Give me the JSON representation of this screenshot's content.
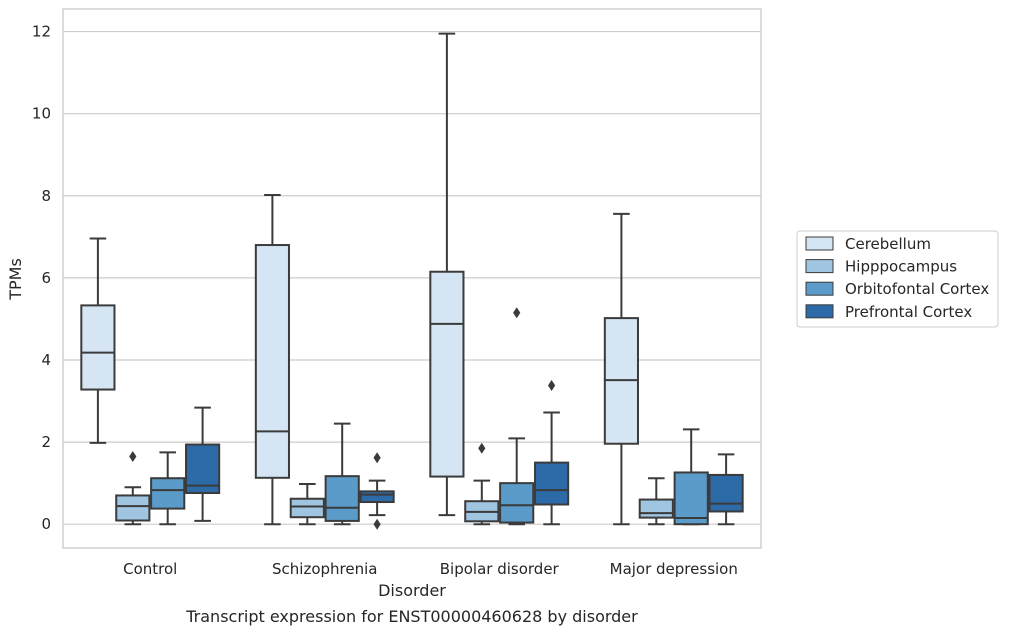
{
  "chart_data": {
    "type": "box",
    "xlabel": "Disorder",
    "ylabel": "TPMs",
    "caption": "Transcript expression for ENST00000460628 by disorder",
    "ylim": [
      -0.58,
      12.55
    ],
    "yticks": [
      0,
      2,
      4,
      6,
      8,
      10,
      12
    ],
    "grid": true,
    "legend_position": "right",
    "categories": [
      "Control",
      "Schizophrenia",
      "Bipolar disorder",
      "Major depression"
    ],
    "series": [
      {
        "name": "Cerebellum",
        "color": "#d6e5f3",
        "boxes": [
          {
            "whisker_low": 1.98,
            "q1": 3.28,
            "median": 4.18,
            "q3": 5.33,
            "whisker_high": 6.96,
            "outliers": []
          },
          {
            "whisker_low": 0.0,
            "q1": 1.13,
            "median": 2.26,
            "q3": 6.8,
            "whisker_high": 8.02,
            "outliers": []
          },
          {
            "whisker_low": 0.22,
            "q1": 1.16,
            "median": 4.88,
            "q3": 6.15,
            "whisker_high": 11.95,
            "outliers": []
          },
          {
            "whisker_low": 0.0,
            "q1": 1.96,
            "median": 3.51,
            "q3": 5.02,
            "whisker_high": 7.56,
            "outliers": []
          }
        ]
      },
      {
        "name": "Hipppocampus",
        "color": "#a0c5e0",
        "boxes": [
          {
            "whisker_low": 0.0,
            "q1": 0.09,
            "median": 0.44,
            "q3": 0.7,
            "whisker_high": 0.9,
            "outliers": [
              1.65
            ]
          },
          {
            "whisker_low": 0.0,
            "q1": 0.17,
            "median": 0.43,
            "q3": 0.62,
            "whisker_high": 0.98,
            "outliers": []
          },
          {
            "whisker_low": 0.0,
            "q1": 0.07,
            "median": 0.3,
            "q3": 0.56,
            "whisker_high": 1.06,
            "outliers": [
              1.85
            ]
          },
          {
            "whisker_low": 0.0,
            "q1": 0.16,
            "median": 0.27,
            "q3": 0.6,
            "whisker_high": 1.12,
            "outliers": []
          }
        ]
      },
      {
        "name": "Orbitofontal Cortex",
        "color": "#5b9bc9",
        "boxes": [
          {
            "whisker_low": 0.0,
            "q1": 0.38,
            "median": 0.83,
            "q3": 1.12,
            "whisker_high": 1.75,
            "outliers": []
          },
          {
            "whisker_low": 0.0,
            "q1": 0.08,
            "median": 0.4,
            "q3": 1.17,
            "whisker_high": 2.45,
            "outliers": []
          },
          {
            "whisker_low": 0.0,
            "q1": 0.04,
            "median": 0.46,
            "q3": 1.0,
            "whisker_high": 2.09,
            "outliers": [
              5.15
            ]
          },
          {
            "whisker_low": 0.0,
            "q1": 0.0,
            "median": 0.15,
            "q3": 1.26,
            "whisker_high": 2.31,
            "outliers": []
          }
        ]
      },
      {
        "name": "Prefrontal Cortex",
        "color": "#2d6aa8",
        "boxes": [
          {
            "whisker_low": 0.08,
            "q1": 0.76,
            "median": 0.94,
            "q3": 1.94,
            "whisker_high": 2.84,
            "outliers": []
          },
          {
            "whisker_low": 0.22,
            "q1": 0.54,
            "median": 0.72,
            "q3": 0.8,
            "whisker_high": 1.06,
            "outliers": [
              1.62,
              0.0
            ]
          },
          {
            "whisker_low": 0.0,
            "q1": 0.48,
            "median": 0.83,
            "q3": 1.5,
            "whisker_high": 2.72,
            "outliers": [
              3.38
            ]
          },
          {
            "whisker_low": 0.0,
            "q1": 0.31,
            "median": 0.5,
            "q3": 1.2,
            "whisker_high": 1.7,
            "outliers": []
          }
        ]
      }
    ]
  }
}
